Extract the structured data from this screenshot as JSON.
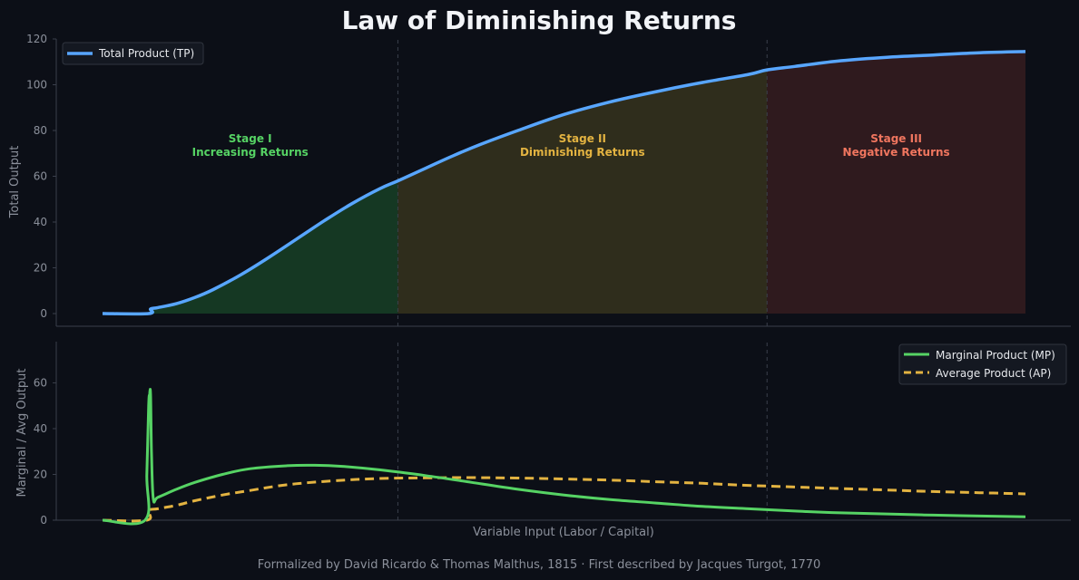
{
  "title": "Law of Diminishing Returns",
  "footer": "Formalized by David Ricardo & Thomas Malthus, 1815  ·  First described by Jacques Turgot, 1770",
  "colors": {
    "background": "#0c0f17",
    "tp": "#58a6ff",
    "mp": "#56d364",
    "ap": "#e3b341",
    "stage1_fill": "#1a4a2a",
    "stage2_fill": "#3e3a1f",
    "stage3_fill": "#3e1f22",
    "stage1_text": "#56d364",
    "stage2_text": "#e3b341",
    "stage3_text": "#f0765f",
    "divider": "#3a3f4b",
    "axis": "#3a3f4b",
    "tick": "#8b909b"
  },
  "stages": [
    {
      "line1": "Stage I",
      "line2": "Increasing Returns"
    },
    {
      "line1": "Stage II",
      "line2": "Diminishing Returns"
    },
    {
      "line1": "Stage III",
      "line2": "Negative Returns"
    }
  ],
  "chart_data": [
    {
      "type": "area",
      "ylabel": "Total Output",
      "ylim": [
        0,
        120
      ],
      "yticks": [
        0,
        20,
        40,
        60,
        80,
        100,
        120
      ],
      "x_range": [
        0,
        10
      ],
      "grid": false,
      "legend_position": "top-left",
      "stage_boundaries": [
        3.2,
        7.2
      ],
      "series": [
        {
          "name": "Total Product (TP)",
          "x": [
            0,
            0.5,
            0.52,
            0.6,
            0.8,
            1.0,
            1.2,
            1.5,
            1.8,
            2.1,
            2.4,
            2.7,
            3.0,
            3.2,
            3.5,
            3.8,
            4.1,
            4.5,
            5.0,
            5.5,
            6.0,
            6.5,
            7.0,
            7.2,
            7.5,
            8.0,
            8.5,
            9.0,
            9.5,
            10.0
          ],
          "y": [
            0,
            0,
            2,
            2.6,
            4.3,
            7,
            10.5,
            17,
            24.5,
            32.5,
            40.5,
            48,
            54.5,
            58,
            63.5,
            69,
            74,
            80,
            87,
            92.5,
            97,
            101,
            104.5,
            106.5,
            108,
            110.5,
            112,
            113,
            114,
            114.5
          ]
        }
      ]
    },
    {
      "type": "line",
      "xlabel": "Variable Input (Labor / Capital)",
      "ylabel": "Marginal / Avg Output",
      "ylim": [
        0,
        78
      ],
      "yticks": [
        0,
        20,
        40,
        60
      ],
      "x_range": [
        0,
        10
      ],
      "grid": false,
      "legend_position": "top-right",
      "stage_boundaries": [
        3.2,
        7.2
      ],
      "series": [
        {
          "name": "Marginal Product (MP)",
          "x": [
            0,
            0.46,
            0.48,
            0.5,
            0.51,
            0.52,
            0.53,
            0.55,
            0.6,
            0.8,
            1.0,
            1.3,
            1.6,
            2.0,
            2.3,
            2.6,
            3.0,
            3.5,
            4.0,
            4.5,
            5.0,
            5.5,
            6.0,
            6.5,
            7.0,
            7.5,
            8.0,
            9.0,
            10.0
          ],
          "y": [
            0,
            0,
            20,
            50,
            55,
            55,
            30,
            9.5,
            10,
            13.5,
            16.5,
            20,
            22.5,
            23.8,
            24,
            23.5,
            22,
            19.5,
            16.5,
            13.5,
            11,
            9,
            7.5,
            6,
            5,
            4,
            3.2,
            2.2,
            1.5
          ]
        },
        {
          "name": "Average Product (AP)",
          "x": [
            0,
            0.48,
            0.5,
            0.6,
            0.8,
            1.0,
            1.3,
            1.6,
            2.0,
            2.5,
            3.0,
            3.5,
            4.0,
            4.5,
            5.0,
            5.5,
            6.0,
            6.5,
            7.0,
            7.5,
            8.0,
            8.5,
            9.0,
            9.5,
            10.0
          ],
          "y": [
            0,
            0,
            4.2,
            5,
            6.5,
            8.5,
            11,
            13,
            15.5,
            17.2,
            18.2,
            18.5,
            18.6,
            18.4,
            18,
            17.5,
            16.8,
            16.1,
            15.2,
            14.5,
            13.8,
            13.2,
            12.5,
            12,
            11.5
          ]
        }
      ]
    }
  ]
}
